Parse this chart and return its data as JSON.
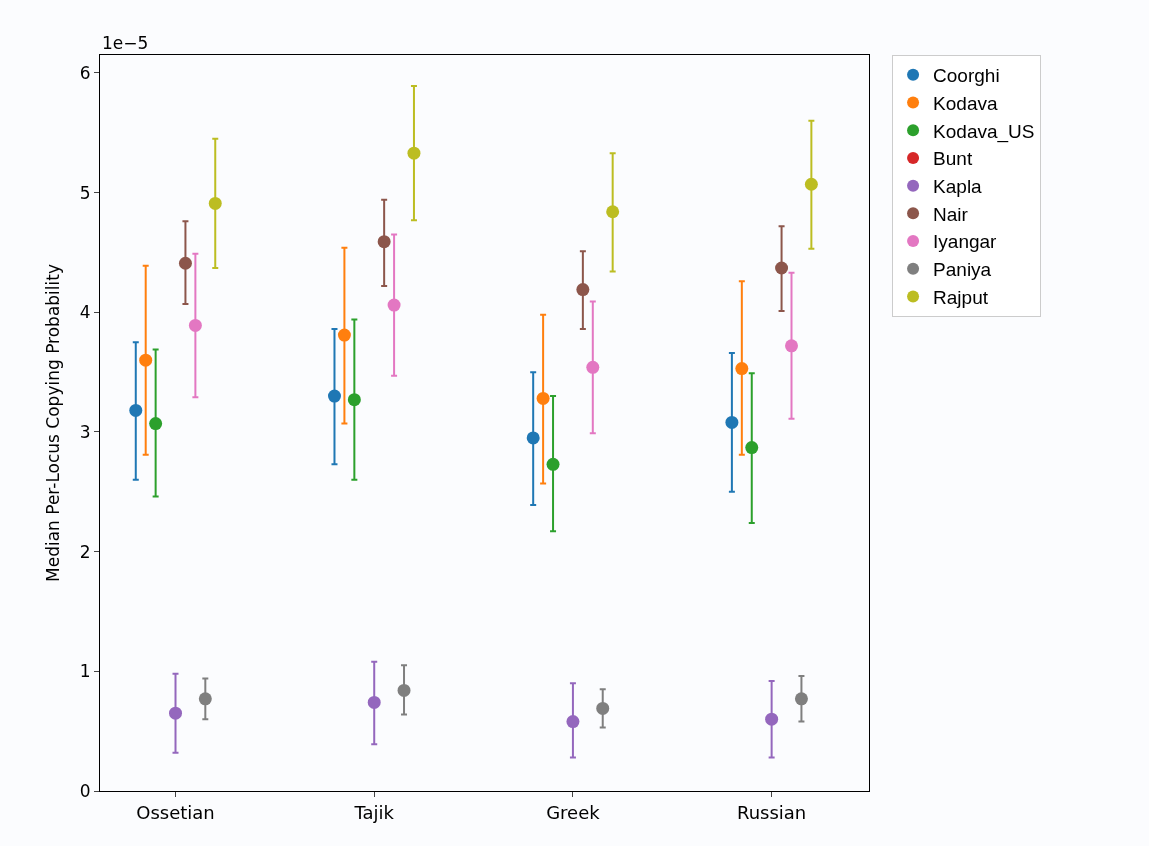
{
  "chart_data": {
    "type": "scatter",
    "ylabel": "Median Per-Locus Copying Probability",
    "annotations": [
      "1e−5"
    ],
    "categories": [
      "Ossetian",
      "Tajik",
      "Greek",
      "Russian"
    ],
    "ylim": [
      0,
      6.15
    ],
    "yticks": [
      0,
      1,
      2,
      3,
      4,
      5,
      6
    ],
    "marker": "circle",
    "legend": "right",
    "series": [
      {
        "name": "Coorghi",
        "color": "#1f77b4",
        "values": [
          3.18,
          3.3,
          2.95,
          3.08
        ],
        "errors": [
          [
            2.6,
            3.75
          ],
          [
            2.73,
            3.86
          ],
          [
            2.39,
            3.5
          ],
          [
            2.5,
            3.66
          ]
        ]
      },
      {
        "name": "Kodava",
        "color": "#ff7f0e",
        "values": [
          3.6,
          3.81,
          3.28,
          3.53
        ],
        "errors": [
          [
            2.81,
            4.39
          ],
          [
            3.07,
            4.54
          ],
          [
            2.57,
            3.98
          ],
          [
            2.81,
            4.26
          ]
        ]
      },
      {
        "name": "Kodava_US",
        "color": "#2ca02c",
        "values": [
          3.07,
          3.27,
          2.73,
          2.87
        ],
        "errors": [
          [
            2.46,
            3.69
          ],
          [
            2.6,
            3.94
          ],
          [
            2.17,
            3.3
          ],
          [
            2.24,
            3.49
          ]
        ]
      },
      {
        "name": "Bunt",
        "color": "#d62728",
        "values": [
          null,
          null,
          null,
          null
        ]
      },
      {
        "name": "Kapla",
        "color": "#9467bd",
        "values": [
          0.65,
          0.74,
          0.58,
          0.6
        ],
        "errors": [
          [
            0.32,
            0.98
          ],
          [
            0.39,
            1.08
          ],
          [
            0.28,
            0.9
          ],
          [
            0.28,
            0.92
          ]
        ]
      },
      {
        "name": "Nair",
        "color": "#8c564b",
        "values": [
          4.41,
          4.59,
          4.19,
          4.37
        ],
        "errors": [
          [
            4.07,
            4.76
          ],
          [
            4.22,
            4.94
          ],
          [
            3.86,
            4.51
          ],
          [
            4.01,
            4.72
          ]
        ]
      },
      {
        "name": "Iyangar",
        "color": "#e377c2",
        "values": [
          3.89,
          4.06,
          3.54,
          3.72
        ],
        "errors": [
          [
            3.29,
            4.49
          ],
          [
            3.47,
            4.65
          ],
          [
            2.99,
            4.09
          ],
          [
            3.11,
            4.33
          ]
        ]
      },
      {
        "name": "Paniya",
        "color": "#7f7f7f",
        "values": [
          0.77,
          0.84,
          0.69,
          0.77
        ],
        "errors": [
          [
            0.6,
            0.94
          ],
          [
            0.64,
            1.05
          ],
          [
            0.53,
            0.85
          ],
          [
            0.58,
            0.96
          ]
        ]
      },
      {
        "name": "Rajput",
        "color": "#bcbd22",
        "values": [
          4.91,
          5.33,
          4.84,
          5.07
        ],
        "errors": [
          [
            4.37,
            5.45
          ],
          [
            4.77,
            5.89
          ],
          [
            4.34,
            5.33
          ],
          [
            4.53,
            5.6
          ]
        ]
      }
    ]
  }
}
